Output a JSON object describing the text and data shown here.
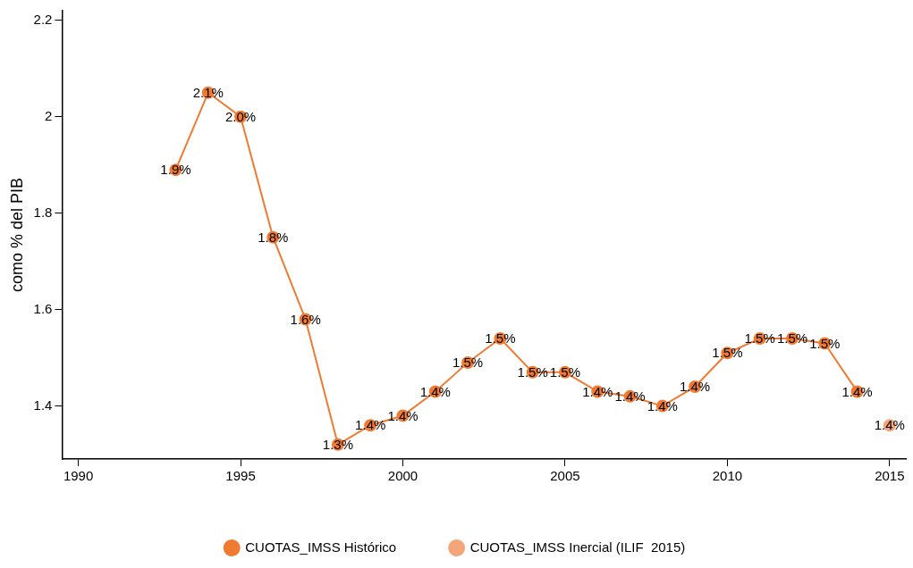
{
  "chart_data": {
    "type": "line",
    "ylabel": "como % del PIB",
    "xlim": [
      1989.5,
      2015.5
    ],
    "xticks": [
      1990,
      1995,
      2000,
      2005,
      2010,
      2015
    ],
    "ylim": [
      1.29,
      2.22
    ],
    "yticks": [
      1.4,
      1.6,
      1.8,
      2,
      2.2
    ],
    "grid": false,
    "legend": "bottom",
    "marker": "circle",
    "line_style": "solid",
    "series": [
      {
        "name": "CUOTAS_IMSS Histórico",
        "color": "#f07a32",
        "x": [
          1993,
          1994,
          1995,
          1996,
          1997,
          1998,
          1999,
          2000,
          2001,
          2002,
          2003,
          2004,
          2005,
          2006,
          2007,
          2008,
          2009,
          2010,
          2011,
          2012,
          2013,
          2014
        ],
        "values": [
          1.89,
          2.05,
          2.0,
          1.75,
          1.58,
          1.32,
          1.36,
          1.38,
          1.43,
          1.49,
          1.54,
          1.47,
          1.47,
          1.43,
          1.42,
          1.4,
          1.44,
          1.51,
          1.54,
          1.54,
          1.53,
          1.43
        ],
        "value_labels": [
          "1.9%",
          "2.1%",
          "2.0%",
          "1.8%",
          "1.6%",
          "1.3%",
          "1.4%",
          "1.4%",
          "1.4%",
          "1.5%",
          "1.5%",
          "1.5%",
          "1.5%",
          "1.4%",
          "1.4%",
          "1.4%",
          "1.4%",
          "1.5%",
          "1.5%",
          "1.5%",
          "1.5%",
          "1.4%"
        ]
      },
      {
        "name": "CUOTAS_IMSS Inercial (ILIF  2015)",
        "color": "#f4a57a",
        "x": [
          2015
        ],
        "values": [
          1.36
        ],
        "value_labels": [
          "1.4%"
        ]
      }
    ]
  }
}
